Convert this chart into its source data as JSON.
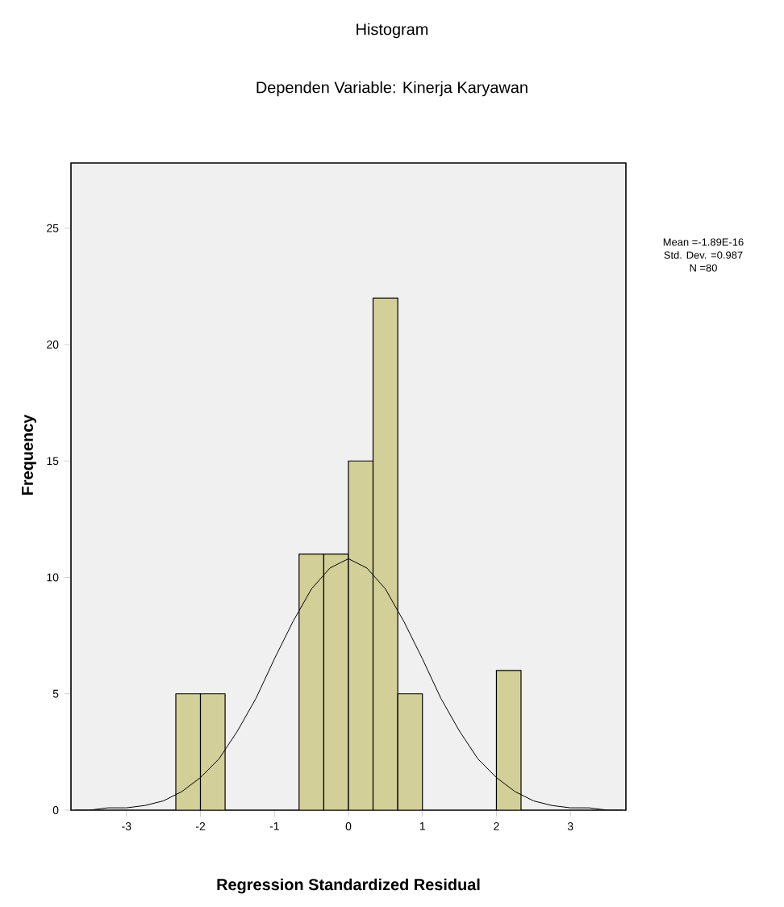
{
  "chart_data": {
    "type": "histogram",
    "title": "Histogram",
    "subtitle": "Dependen Variable: Kinerja Karyawan",
    "xlabel": "Regression Standardized Residual",
    "ylabel": "Frequency",
    "bins": [
      -2.333,
      -2,
      -1.667,
      -1.333,
      -1,
      -0.667,
      -0.333,
      0,
      0.333,
      0.667,
      1,
      1.333,
      1.667,
      2,
      2.333
    ],
    "values": [
      5,
      5,
      0,
      0,
      0,
      11,
      11,
      15,
      22,
      5,
      0,
      0,
      0,
      6
    ],
    "color": "#d3cf98",
    "series": [
      {
        "type": "line",
        "color": "#000000",
        "x": [
          -3.7,
          -3.5,
          -3.25,
          -3,
          -2.75,
          -2.5,
          -2.25,
          -2,
          -1.75,
          -1.5,
          -1.25,
          -1,
          -0.75,
          -0.5,
          -0.25,
          0,
          0.25,
          0.5,
          0.75,
          1,
          1.25,
          1.5,
          1.75,
          2,
          2.25,
          2.5,
          2.75,
          3,
          3.25,
          3.5,
          3.7
        ],
        "values": [
          0,
          0,
          0.1,
          0.1,
          0.2,
          0.4,
          0.8,
          1.4,
          2.2,
          3.4,
          4.8,
          6.5,
          8.1,
          9.5,
          10.4,
          10.8,
          10.4,
          9.5,
          8.1,
          6.5,
          4.8,
          3.4,
          2.2,
          1.4,
          0.8,
          0.4,
          0.2,
          0.1,
          0.1,
          0,
          0
        ]
      }
    ],
    "xlim": [
      -3.75,
      3.75
    ],
    "ylim": [
      0,
      27.8
    ],
    "xticks": [
      -3,
      -2,
      -1,
      0,
      1,
      2,
      3
    ],
    "yticks": [
      0,
      5,
      10,
      15,
      20,
      25
    ],
    "annotations": [
      "Mean =-1.89E-16",
      "Std. Dev. =0.987",
      "N =80"
    ],
    "grid": false
  }
}
